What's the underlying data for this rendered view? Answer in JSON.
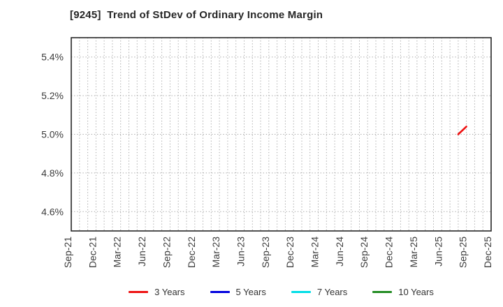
{
  "page": {
    "background": "#ffffff"
  },
  "chart_data": {
    "type": "line",
    "title": "[9245]  Trend of StDev of Ordinary Income Margin",
    "xlabel": "",
    "ylabel": "",
    "y_ticks": [
      4.6,
      4.8,
      5.0,
      5.2,
      5.4
    ],
    "y_tick_suffix": "%",
    "ylim": [
      4.5,
      5.5
    ],
    "x_tick_labels": [
      "Sep-21",
      "Dec-21",
      "Mar-22",
      "Jun-22",
      "Sep-22",
      "Dec-22",
      "Mar-23",
      "Jun-23",
      "Sep-23",
      "Dec-23",
      "Mar-24",
      "Jun-24",
      "Sep-24",
      "Dec-24",
      "Mar-25",
      "Jun-25",
      "Sep-25",
      "Dec-25"
    ],
    "months_total": 51,
    "months_per_tick": 3,
    "grid": {
      "style": "dotted",
      "vertical": "monthly",
      "horizontal": "every 0.2%"
    },
    "legend_position": "bottom-center",
    "series": [
      {
        "name": "3 Years",
        "color": "#ee1111",
        "points": [
          {
            "x": "Aug-25",
            "xi": 47,
            "y": 5.0
          },
          {
            "x": "Sep-25",
            "xi": 48,
            "y": 5.04
          }
        ]
      },
      {
        "name": "5 Years",
        "color": "#0000dd",
        "points": []
      },
      {
        "name": "7 Years",
        "color": "#00dde6",
        "points": []
      },
      {
        "name": "10 Years",
        "color": "#228b22",
        "points": []
      }
    ]
  }
}
